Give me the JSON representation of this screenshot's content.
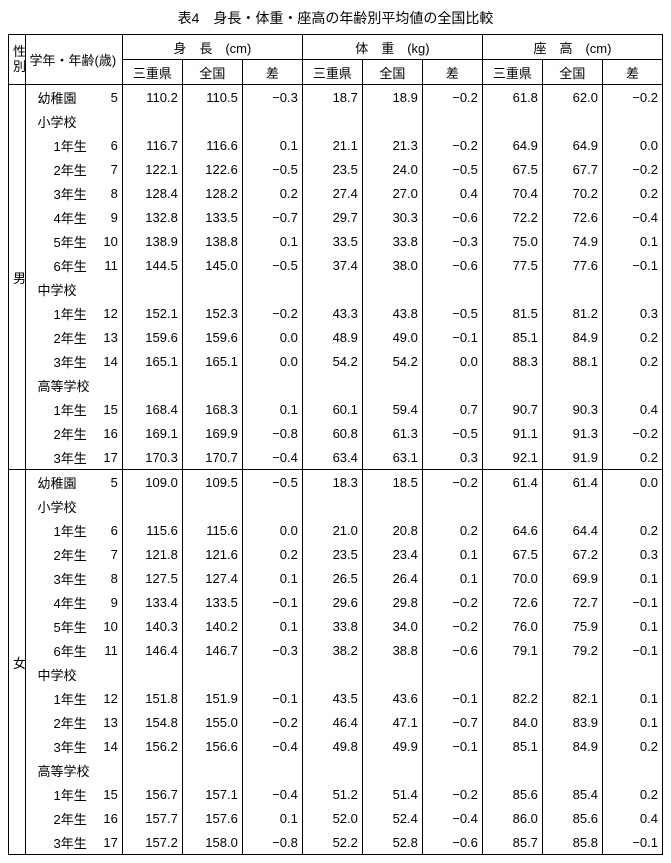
{
  "title": "表4　身長・体重・座高の年齢別平均値の全国比較",
  "header": {
    "sex": "性別",
    "grade_age": "学年・年齢(歳)",
    "height": "身　長　(cm)",
    "weight": "体　重　(kg)",
    "sitting": "座　高　(cm)",
    "mie": "三重県",
    "national": "全国",
    "diff": "差"
  },
  "sections": [
    {
      "sex_label": "男",
      "groups": [
        {
          "label": "幼稚園",
          "indent": 1,
          "age": "5",
          "h": [
            "110.2",
            "110.5",
            "−0.3"
          ],
          "w": [
            "18.7",
            "18.9",
            "−0.2"
          ],
          "s": [
            "61.8",
            "62.0",
            "−0.2"
          ]
        },
        {
          "label": "小学校",
          "indent": 1,
          "header": true
        },
        {
          "label": "1年生",
          "indent": 2,
          "age": "6",
          "h": [
            "116.7",
            "116.6",
            "0.1"
          ],
          "w": [
            "21.1",
            "21.3",
            "−0.2"
          ],
          "s": [
            "64.9",
            "64.9",
            "0.0"
          ]
        },
        {
          "label": "2年生",
          "indent": 2,
          "age": "7",
          "h": [
            "122.1",
            "122.6",
            "−0.5"
          ],
          "w": [
            "23.5",
            "24.0",
            "−0.5"
          ],
          "s": [
            "67.5",
            "67.7",
            "−0.2"
          ]
        },
        {
          "label": "3年生",
          "indent": 2,
          "age": "8",
          "h": [
            "128.4",
            "128.2",
            "0.2"
          ],
          "w": [
            "27.4",
            "27.0",
            "0.4"
          ],
          "s": [
            "70.4",
            "70.2",
            "0.2"
          ]
        },
        {
          "label": "4年生",
          "indent": 2,
          "age": "9",
          "h": [
            "132.8",
            "133.5",
            "−0.7"
          ],
          "w": [
            "29.7",
            "30.3",
            "−0.6"
          ],
          "s": [
            "72.2",
            "72.6",
            "−0.4"
          ]
        },
        {
          "label": "5年生",
          "indent": 2,
          "age": "10",
          "h": [
            "138.9",
            "138.8",
            "0.1"
          ],
          "w": [
            "33.5",
            "33.8",
            "−0.3"
          ],
          "s": [
            "75.0",
            "74.9",
            "0.1"
          ]
        },
        {
          "label": "6年生",
          "indent": 2,
          "age": "11",
          "h": [
            "144.5",
            "145.0",
            "−0.5"
          ],
          "w": [
            "37.4",
            "38.0",
            "−0.6"
          ],
          "s": [
            "77.5",
            "77.6",
            "−0.1"
          ]
        },
        {
          "label": "中学校",
          "indent": 1,
          "header": true
        },
        {
          "label": "1年生",
          "indent": 2,
          "age": "12",
          "h": [
            "152.1",
            "152.3",
            "−0.2"
          ],
          "w": [
            "43.3",
            "43.8",
            "−0.5"
          ],
          "s": [
            "81.5",
            "81.2",
            "0.3"
          ]
        },
        {
          "label": "2年生",
          "indent": 2,
          "age": "13",
          "h": [
            "159.6",
            "159.6",
            "0.0"
          ],
          "w": [
            "48.9",
            "49.0",
            "−0.1"
          ],
          "s": [
            "85.1",
            "84.9",
            "0.2"
          ]
        },
        {
          "label": "3年生",
          "indent": 2,
          "age": "14",
          "h": [
            "165.1",
            "165.1",
            "0.0"
          ],
          "w": [
            "54.2",
            "54.2",
            "0.0"
          ],
          "s": [
            "88.3",
            "88.1",
            "0.2"
          ]
        },
        {
          "label": "高等学校",
          "indent": 1,
          "header": true
        },
        {
          "label": "1年生",
          "indent": 2,
          "age": "15",
          "h": [
            "168.4",
            "168.3",
            "0.1"
          ],
          "w": [
            "60.1",
            "59.4",
            "0.7"
          ],
          "s": [
            "90.7",
            "90.3",
            "0.4"
          ]
        },
        {
          "label": "2年生",
          "indent": 2,
          "age": "16",
          "h": [
            "169.1",
            "169.9",
            "−0.8"
          ],
          "w": [
            "60.8",
            "61.3",
            "−0.5"
          ],
          "s": [
            "91.1",
            "91.3",
            "−0.2"
          ]
        },
        {
          "label": "3年生",
          "indent": 2,
          "age": "17",
          "h": [
            "170.3",
            "170.7",
            "−0.4"
          ],
          "w": [
            "63.4",
            "63.1",
            "0.3"
          ],
          "s": [
            "92.1",
            "91.9",
            "0.2"
          ]
        }
      ]
    },
    {
      "sex_label": "女",
      "groups": [
        {
          "label": "幼稚園",
          "indent": 1,
          "age": "5",
          "h": [
            "109.0",
            "109.5",
            "−0.5"
          ],
          "w": [
            "18.3",
            "18.5",
            "−0.2"
          ],
          "s": [
            "61.4",
            "61.4",
            "0.0"
          ]
        },
        {
          "label": "小学校",
          "indent": 1,
          "header": true
        },
        {
          "label": "1年生",
          "indent": 2,
          "age": "6",
          "h": [
            "115.6",
            "115.6",
            "0.0"
          ],
          "w": [
            "21.0",
            "20.8",
            "0.2"
          ],
          "s": [
            "64.6",
            "64.4",
            "0.2"
          ]
        },
        {
          "label": "2年生",
          "indent": 2,
          "age": "7",
          "h": [
            "121.8",
            "121.6",
            "0.2"
          ],
          "w": [
            "23.5",
            "23.4",
            "0.1"
          ],
          "s": [
            "67.5",
            "67.2",
            "0.3"
          ]
        },
        {
          "label": "3年生",
          "indent": 2,
          "age": "8",
          "h": [
            "127.5",
            "127.4",
            "0.1"
          ],
          "w": [
            "26.5",
            "26.4",
            "0.1"
          ],
          "s": [
            "70.0",
            "69.9",
            "0.1"
          ]
        },
        {
          "label": "4年生",
          "indent": 2,
          "age": "9",
          "h": [
            "133.4",
            "133.5",
            "−0.1"
          ],
          "w": [
            "29.6",
            "29.8",
            "−0.2"
          ],
          "s": [
            "72.6",
            "72.7",
            "−0.1"
          ]
        },
        {
          "label": "5年生",
          "indent": 2,
          "age": "10",
          "h": [
            "140.3",
            "140.2",
            "0.1"
          ],
          "w": [
            "33.8",
            "34.0",
            "−0.2"
          ],
          "s": [
            "76.0",
            "75.9",
            "0.1"
          ]
        },
        {
          "label": "6年生",
          "indent": 2,
          "age": "11",
          "h": [
            "146.4",
            "146.7",
            "−0.3"
          ],
          "w": [
            "38.2",
            "38.8",
            "−0.6"
          ],
          "s": [
            "79.1",
            "79.2",
            "−0.1"
          ]
        },
        {
          "label": "中学校",
          "indent": 1,
          "header": true
        },
        {
          "label": "1年生",
          "indent": 2,
          "age": "12",
          "h": [
            "151.8",
            "151.9",
            "−0.1"
          ],
          "w": [
            "43.5",
            "43.6",
            "−0.1"
          ],
          "s": [
            "82.2",
            "82.1",
            "0.1"
          ]
        },
        {
          "label": "2年生",
          "indent": 2,
          "age": "13",
          "h": [
            "154.8",
            "155.0",
            "−0.2"
          ],
          "w": [
            "46.4",
            "47.1",
            "−0.7"
          ],
          "s": [
            "84.0",
            "83.9",
            "0.1"
          ]
        },
        {
          "label": "3年生",
          "indent": 2,
          "age": "14",
          "h": [
            "156.2",
            "156.6",
            "−0.4"
          ],
          "w": [
            "49.8",
            "49.9",
            "−0.1"
          ],
          "s": [
            "85.1",
            "84.9",
            "0.2"
          ]
        },
        {
          "label": "高等学校",
          "indent": 1,
          "header": true
        },
        {
          "label": "1年生",
          "indent": 2,
          "age": "15",
          "h": [
            "156.7",
            "157.1",
            "−0.4"
          ],
          "w": [
            "51.2",
            "51.4",
            "−0.2"
          ],
          "s": [
            "85.6",
            "85.4",
            "0.2"
          ]
        },
        {
          "label": "2年生",
          "indent": 2,
          "age": "16",
          "h": [
            "157.7",
            "157.6",
            "0.1"
          ],
          "w": [
            "52.0",
            "52.4",
            "−0.4"
          ],
          "s": [
            "86.0",
            "85.6",
            "0.4"
          ]
        },
        {
          "label": "3年生",
          "indent": 2,
          "age": "17",
          "h": [
            "157.2",
            "158.0",
            "−0.8"
          ],
          "w": [
            "52.2",
            "52.8",
            "−0.6"
          ],
          "s": [
            "85.7",
            "85.8",
            "−0.1"
          ]
        }
      ]
    }
  ]
}
